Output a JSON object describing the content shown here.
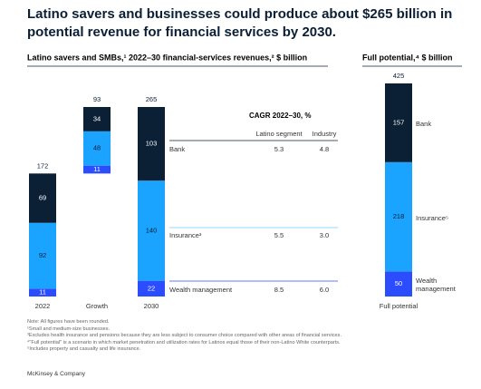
{
  "title": "Latino savers and businesses could produce about $265 billion in potential revenue for financial services by 2030.",
  "chart_data": [
    {
      "type": "waterfall",
      "subtitle": "Latino savers and SMBs,¹ 2022–30 financial-services revenues,² $ billion",
      "categories": [
        "2022",
        "Growth",
        "2030"
      ],
      "measure": [
        "absolute",
        "relative",
        "total"
      ],
      "totals": [
        172,
        93,
        265
      ],
      "series": [
        {
          "name": "Wealth management",
          "color": "#2b4cff",
          "label_color": "#ffffff",
          "values": [
            11,
            11,
            22
          ]
        },
        {
          "name": "Insurance³",
          "color": "#1aa3ff",
          "label_color": "#0b1f35",
          "values": [
            92,
            48,
            140
          ]
        },
        {
          "name": "Bank",
          "color": "#0b1f35",
          "label_color": "#ffffff",
          "values": [
            69,
            34,
            103
          ]
        }
      ]
    },
    {
      "type": "stacked_bar",
      "subtitle": "Full potential,⁴ $ billion",
      "categories": [
        "Full potential"
      ],
      "measure": [
        "total"
      ],
      "totals": [
        425
      ],
      "series": [
        {
          "name": "Wealth management",
          "color": "#2b4cff",
          "label_color": "#ffffff",
          "values": [
            50
          ]
        },
        {
          "name": "Insurance⁵",
          "color": "#1aa3ff",
          "label_color": "#0b1f35",
          "values": [
            218
          ]
        },
        {
          "name": "Bank",
          "color": "#0b1f35",
          "label_color": "#ffffff",
          "values": [
            157
          ]
        }
      ]
    }
  ],
  "table": {
    "title": "CAGR 2022–30, %",
    "columns": [
      "Latino segment",
      "Industry"
    ],
    "rows": [
      [
        "8.5",
        "6.0"
      ],
      [
        "5.5",
        "3.0"
      ],
      [
        "5.3",
        "4.8"
      ]
    ]
  },
  "notes": [
    "Note: All figures have been rounded.",
    "¹Small and medium-size businesses.",
    "³Excludes health insurance and pensions because they are less subject to consumer choice compared with other areas of financial services.",
    "⁴\"Full potential\" is a scenario in which market penetration and utilization rates for Latinos equal those of their non-Latino White counterparts.",
    "⁵Includes property and casualty and life insurance."
  ],
  "source": "McKinsey & Company"
}
